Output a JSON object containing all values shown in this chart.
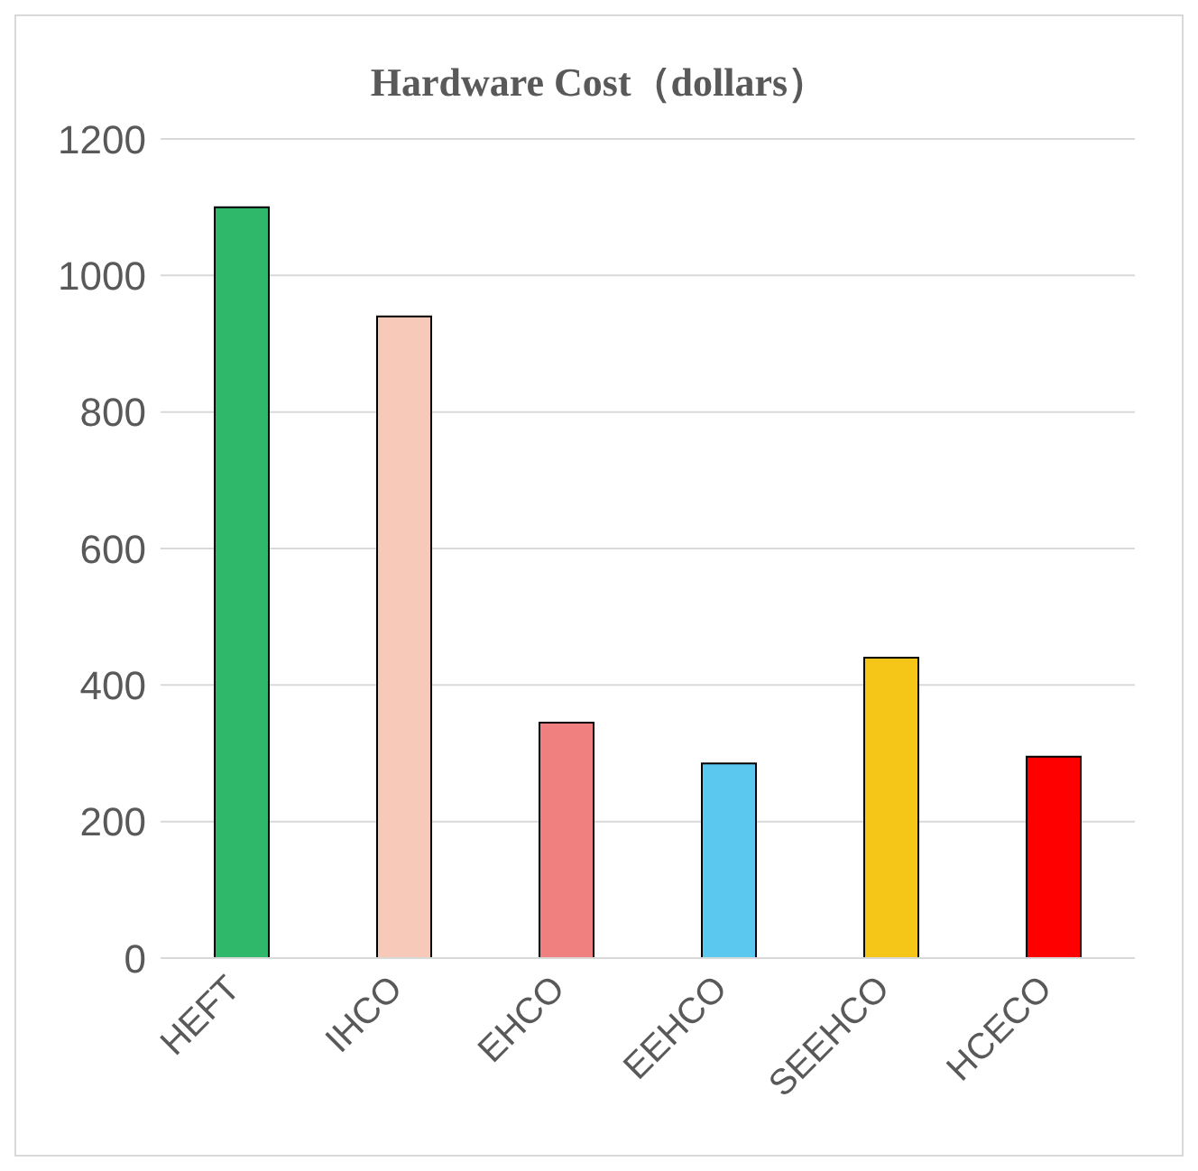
{
  "chart_data": {
    "type": "bar",
    "title": "Hardware Cost（dollars）",
    "categories": [
      "HEFT",
      "IHCO",
      "EHCO",
      "EEHCO",
      "SEEHCO",
      "HCECO"
    ],
    "values": [
      1100,
      940,
      345,
      285,
      440,
      295
    ],
    "colors": [
      "#2fb86a",
      "#f6c9b8",
      "#f08080",
      "#5bc8f0",
      "#f5c518",
      "#ff0000"
    ],
    "ylim": [
      0,
      1200
    ],
    "yticks": [
      0,
      200,
      400,
      600,
      800,
      1000,
      1200
    ],
    "grid": "y"
  }
}
